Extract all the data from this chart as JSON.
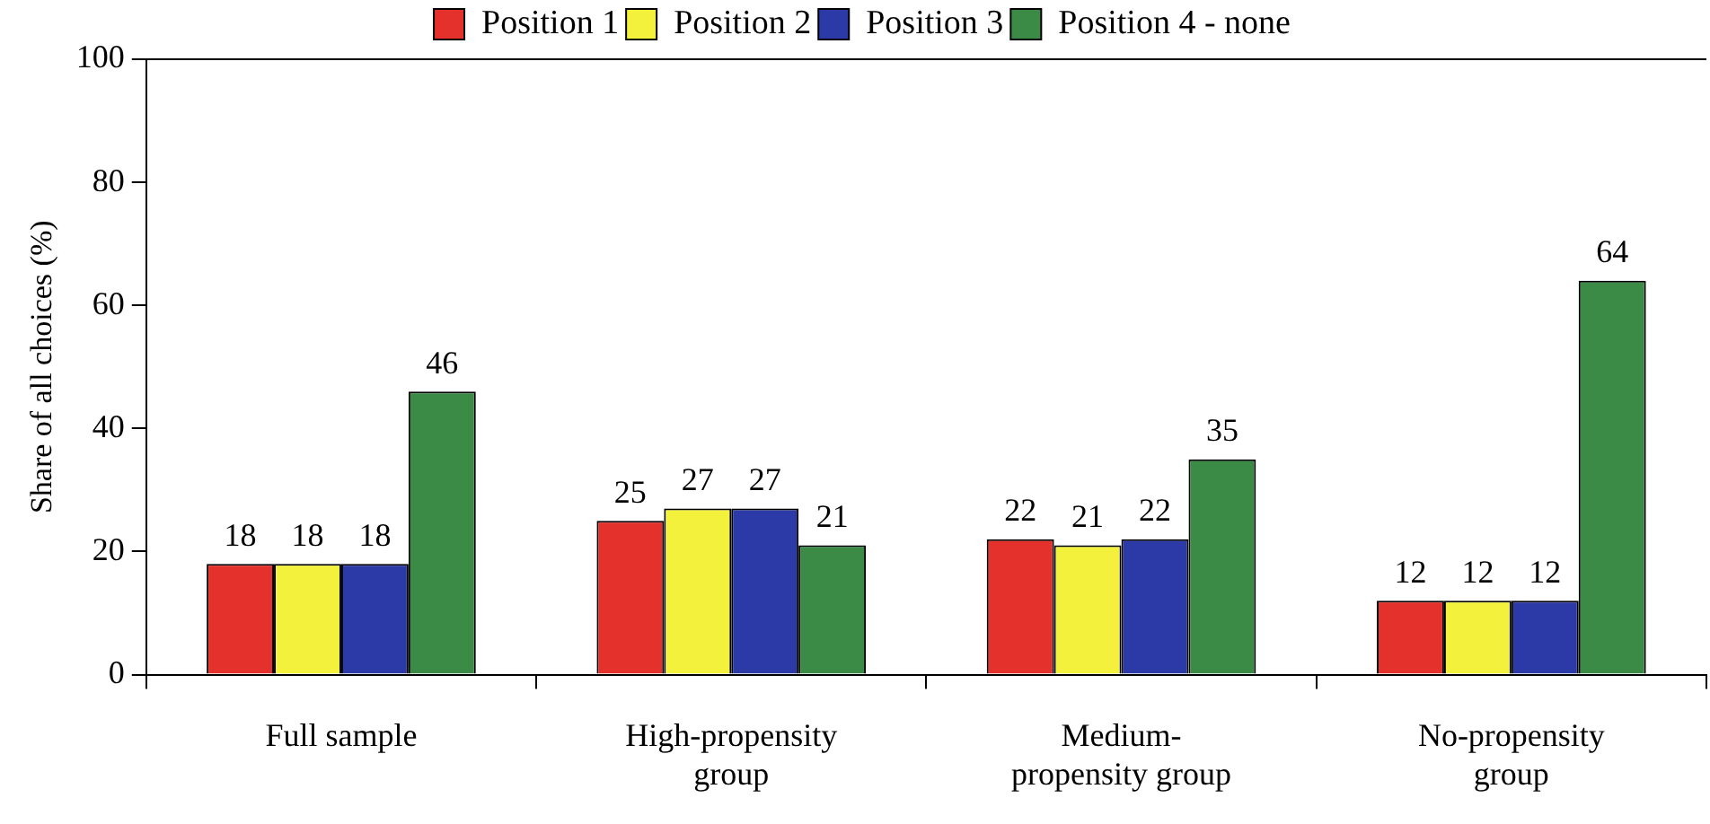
{
  "chart_data": {
    "type": "bar",
    "ylabel": "Share of all choices (%)",
    "categories": [
      "Full sample",
      "High-propensity group",
      "Medium-propensity group",
      "No-propensity group"
    ],
    "series": [
      {
        "name": "Position 1",
        "color": "#e4312b",
        "values": [
          18,
          25,
          22,
          12
        ]
      },
      {
        "name": "Position 2",
        "color": "#f4f13c",
        "values": [
          18,
          27,
          21,
          12
        ]
      },
      {
        "name": "Position 3",
        "color": "#2b3aa6",
        "values": [
          18,
          27,
          22,
          12
        ]
      },
      {
        "name": "Position 4 - none",
        "color": "#3b8b47",
        "values": [
          46,
          21,
          35,
          64
        ]
      }
    ],
    "ylim": [
      0,
      100
    ],
    "yticks": [
      0,
      20,
      40,
      60,
      80,
      100
    ],
    "grid": false,
    "legend": "top",
    "data_labels": true
  }
}
